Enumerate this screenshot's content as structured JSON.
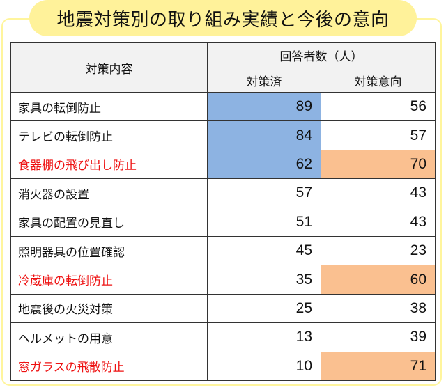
{
  "title": "地震対策別の取り組み実績と今後の意向",
  "colors": {
    "title_bg": "#fff29a",
    "frame_border": "#fff59d",
    "highlight_done": "#8db3e2",
    "highlight_intent": "#fac090",
    "red_text": "#ee1111",
    "header_bg": "#f2f2f2"
  },
  "table": {
    "headers": {
      "measure": "対策内容",
      "group": "回答者数（人）",
      "done": "対策済",
      "intent": "対策意向"
    },
    "rows": [
      {
        "label": "家具の転倒防止",
        "done": "89",
        "intent": "56",
        "red": false,
        "done_hl": true,
        "intent_hl": false
      },
      {
        "label": "テレビの転倒防止",
        "done": "84",
        "intent": "57",
        "red": false,
        "done_hl": true,
        "intent_hl": false
      },
      {
        "label": "食器棚の飛び出し防止",
        "done": "62",
        "intent": "70",
        "red": true,
        "done_hl": true,
        "intent_hl": true
      },
      {
        "label": "消火器の設置",
        "done": "57",
        "intent": "43",
        "red": false,
        "done_hl": false,
        "intent_hl": false
      },
      {
        "label": "家具の配置の見直し",
        "done": "51",
        "intent": "43",
        "red": false,
        "done_hl": false,
        "intent_hl": false
      },
      {
        "label": "照明器具の位置確認",
        "done": "45",
        "intent": "23",
        "red": false,
        "done_hl": false,
        "intent_hl": false
      },
      {
        "label": "冷蔵庫の転倒防止",
        "done": "35",
        "intent": "60",
        "red": true,
        "done_hl": false,
        "intent_hl": true
      },
      {
        "label": "地震後の火災対策",
        "done": "25",
        "intent": "38",
        "red": false,
        "done_hl": false,
        "intent_hl": false
      },
      {
        "label": "ヘルメットの用意",
        "done": "13",
        "intent": "39",
        "red": false,
        "done_hl": false,
        "intent_hl": false
      },
      {
        "label": "窓ガラスの飛散防止",
        "done": "10",
        "intent": "71",
        "red": true,
        "done_hl": false,
        "intent_hl": true
      }
    ]
  }
}
